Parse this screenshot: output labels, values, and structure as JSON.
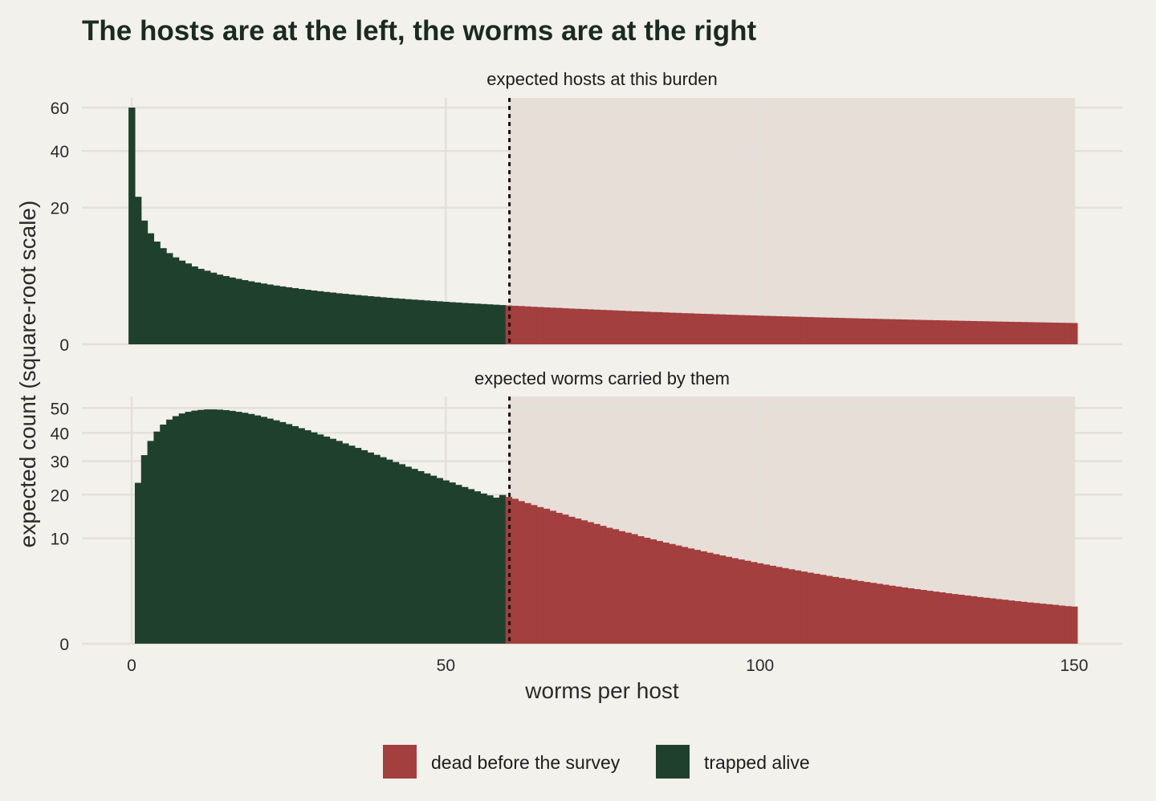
{
  "chart_data": {
    "type": "bar",
    "title": "The hosts are at the left, the worms are at the right",
    "xlabel": "worms per host",
    "ylabel": "expected count (square-root scale)",
    "xlim": [
      0,
      150
    ],
    "x_ticks": [
      "0",
      "50",
      "100",
      "150"
    ],
    "y_scale": "sqrt",
    "threshold": 60,
    "threshold_style": "dotted vertical line; region above threshold shaded",
    "colors": {
      "dead before the survey": "#a33f3e",
      "trapped alive": "#20402e",
      "shade": "#e8ded8",
      "background": "#f2f1eb",
      "grid": "#e2e0d9"
    },
    "legend": {
      "position": "bottom",
      "entries": [
        "dead before the survey",
        "trapped alive"
      ]
    },
    "panels": [
      {
        "strip": "expected hosts at this burden",
        "ylim": [
          0,
          65
        ],
        "y_ticks": [
          "0",
          "20",
          "40",
          "60"
        ],
        "series": [
          {
            "name": "trapped alive",
            "x": [
              0,
              1,
              2,
              3,
              4,
              5,
              6,
              7,
              8,
              9,
              10,
              11,
              12,
              13,
              14,
              15,
              16,
              17,
              18,
              19,
              20,
              21,
              22,
              23,
              24,
              25,
              26,
              27,
              28,
              29,
              30,
              31,
              32,
              33,
              34,
              35,
              36,
              37,
              38,
              39,
              40,
              41,
              42,
              43,
              44,
              45,
              46,
              47,
              48,
              49,
              50,
              51,
              52,
              53,
              54,
              55,
              56,
              57,
              58,
              59
            ],
            "values": [
              60,
              23.3,
              16.4,
              13.2,
              11.3,
              9.9,
              8.9,
              8.1,
              7.5,
              7.0,
              6.5,
              6.1,
              5.8,
              5.5,
              5.2,
              4.99,
              4.78,
              4.59,
              4.41,
              4.25,
              4.1,
              3.96,
              3.83,
              3.7,
              3.59,
              3.48,
              3.38,
              3.28,
              3.19,
              3.1,
              3.02,
              2.94,
              2.87,
              2.79,
              2.73,
              2.66,
              2.6,
              2.54,
              2.48,
              2.43,
              2.37,
              2.32,
              2.27,
              2.23,
              2.18,
              2.14,
              2.1,
              2.06,
              2.02,
              1.98,
              1.94,
              1.9,
              1.87,
              1.83,
              1.8,
              1.77,
              1.74,
              1.71,
              1.68,
              1.65
            ]
          },
          {
            "name": "dead before the survey",
            "x": [
              60,
              61,
              62,
              63,
              64,
              65,
              66,
              67,
              68,
              69,
              70,
              71,
              72,
              73,
              74,
              75,
              76,
              77,
              78,
              79,
              80,
              81,
              82,
              83,
              84,
              85,
              86,
              87,
              88,
              89,
              90,
              91,
              92,
              93,
              94,
              95,
              96,
              97,
              98,
              99,
              100,
              101,
              102,
              103,
              104,
              105,
              106,
              107,
              108,
              109,
              110,
              111,
              112,
              113,
              114,
              115,
              116,
              117,
              118,
              119,
              120,
              121,
              122,
              123,
              124,
              125,
              126,
              127,
              128,
              129,
              130,
              131,
              132,
              133,
              134,
              135,
              136,
              137,
              138,
              139,
              140,
              141,
              142,
              143,
              144,
              145,
              146,
              147,
              148,
              149,
              150
            ],
            "values": [
              1.62,
              1.59,
              1.57,
              1.54,
              1.51,
              1.49,
              1.46,
              1.44,
              1.42,
              1.39,
              1.37,
              1.35,
              1.33,
              1.31,
              1.29,
              1.27,
              1.25,
              1.23,
              1.21,
              1.19,
              1.17,
              1.16,
              1.14,
              1.12,
              1.11,
              1.09,
              1.07,
              1.06,
              1.04,
              1.03,
              1.01,
              0.998,
              0.984,
              0.97,
              0.957,
              0.944,
              0.931,
              0.918,
              0.906,
              0.894,
              0.882,
              0.87,
              0.859,
              0.847,
              0.836,
              0.825,
              0.815,
              0.804,
              0.794,
              0.784,
              0.774,
              0.764,
              0.755,
              0.745,
              0.736,
              0.727,
              0.718,
              0.709,
              0.701,
              0.692,
              0.684,
              0.676,
              0.668,
              0.66,
              0.652,
              0.644,
              0.637,
              0.629,
              0.622,
              0.615,
              0.608,
              0.601,
              0.594,
              0.587,
              0.581,
              0.574,
              0.568,
              0.561,
              0.555,
              0.549,
              0.543,
              0.537,
              0.531,
              0.525,
              0.52,
              0.514,
              0.508,
              0.503,
              0.498,
              0.492,
              0.487
            ]
          }
        ]
      },
      {
        "strip": "expected worms carried by them",
        "ylim": [
          0,
          55
        ],
        "y_ticks": [
          "0",
          "10",
          "20",
          "30",
          "40",
          "50"
        ],
        "series": [
          {
            "name": "trapped alive",
            "x": [
              1,
              2,
              3,
              4,
              5,
              6,
              7,
              8,
              9,
              10,
              11,
              12,
              13,
              14,
              15,
              16,
              17,
              18,
              19,
              20,
              21,
              22,
              23,
              24,
              25,
              26,
              27,
              28,
              29,
              30,
              31,
              32,
              33,
              34,
              35,
              36,
              37,
              38,
              39,
              40,
              41,
              42,
              43,
              44,
              45,
              46,
              47,
              48,
              49,
              50,
              51,
              52,
              53,
              54,
              55,
              56,
              57,
              58,
              59
            ],
            "values": [
              23.3,
              32.0,
              37.0,
              40.5,
              43.2,
              45.2,
              46.6,
              47.7,
              48.4,
              48.9,
              49.2,
              49.4,
              49.4,
              49.3,
              49.1,
              48.8,
              48.4,
              48.0,
              47.5,
              46.9,
              46.3,
              45.6,
              44.9,
              44.2,
              43.4,
              42.6,
              41.8,
              41.0,
              40.2,
              39.4,
              38.6,
              37.8,
              37.0,
              36.1,
              35.3,
              34.5,
              33.7,
              32.9,
              32.1,
              31.3,
              30.5,
              29.7,
              29.0,
              28.2,
              27.5,
              26.8,
              26.1,
              25.4,
              24.7,
              24.0,
              23.4,
              22.7,
              22.1,
              21.5,
              20.9,
              20.3,
              19.8,
              19.2,
              19.9
            ]
          },
          {
            "name": "dead before the survey",
            "x": [
              60,
              61,
              62,
              63,
              64,
              65,
              66,
              67,
              68,
              69,
              70,
              71,
              72,
              73,
              74,
              75,
              76,
              77,
              78,
              79,
              80,
              81,
              82,
              83,
              84,
              85,
              86,
              87,
              88,
              89,
              90,
              91,
              92,
              93,
              94,
              95,
              96,
              97,
              98,
              99,
              100,
              101,
              102,
              103,
              104,
              105,
              106,
              107,
              108,
              109,
              110,
              111,
              112,
              113,
              114,
              115,
              116,
              117,
              118,
              119,
              120,
              121,
              122,
              123,
              124,
              125,
              126,
              127,
              128,
              129,
              130,
              131,
              132,
              133,
              134,
              135,
              136,
              137,
              138,
              139,
              140,
              141,
              142,
              143,
              144,
              145,
              146,
              147,
              148,
              149,
              150
            ],
            "values": [
              19.4,
              18.9,
              18.3,
              17.8,
              17.3,
              16.8,
              16.4,
              15.9,
              15.4,
              15.0,
              14.5,
              14.1,
              13.7,
              13.3,
              12.9,
              12.5,
              12.1,
              11.8,
              11.4,
              11.1,
              10.8,
              10.4,
              10.1,
              9.8,
              9.5,
              9.2,
              8.95,
              8.68,
              8.42,
              8.17,
              7.92,
              7.68,
              7.45,
              7.22,
              7.0,
              6.79,
              6.58,
              6.38,
              6.19,
              6.0,
              5.82,
              5.64,
              5.47,
              5.3,
              5.14,
              4.98,
              4.83,
              4.68,
              4.54,
              4.4,
              4.27,
              4.14,
              4.01,
              3.89,
              3.77,
              3.65,
              3.54,
              3.43,
              3.33,
              3.23,
              3.13,
              3.03,
              2.94,
              2.85,
              2.76,
              2.68,
              2.6,
              2.52,
              2.44,
              2.37,
              2.29,
              2.22,
              2.16,
              2.09,
              2.03,
              1.96,
              1.9,
              1.85,
              1.79,
              1.74,
              1.68,
              1.63,
              1.58,
              1.53,
              1.49,
              1.44,
              1.4,
              1.36,
              1.31,
              1.27,
              1.24
            ]
          }
        ]
      }
    ]
  }
}
